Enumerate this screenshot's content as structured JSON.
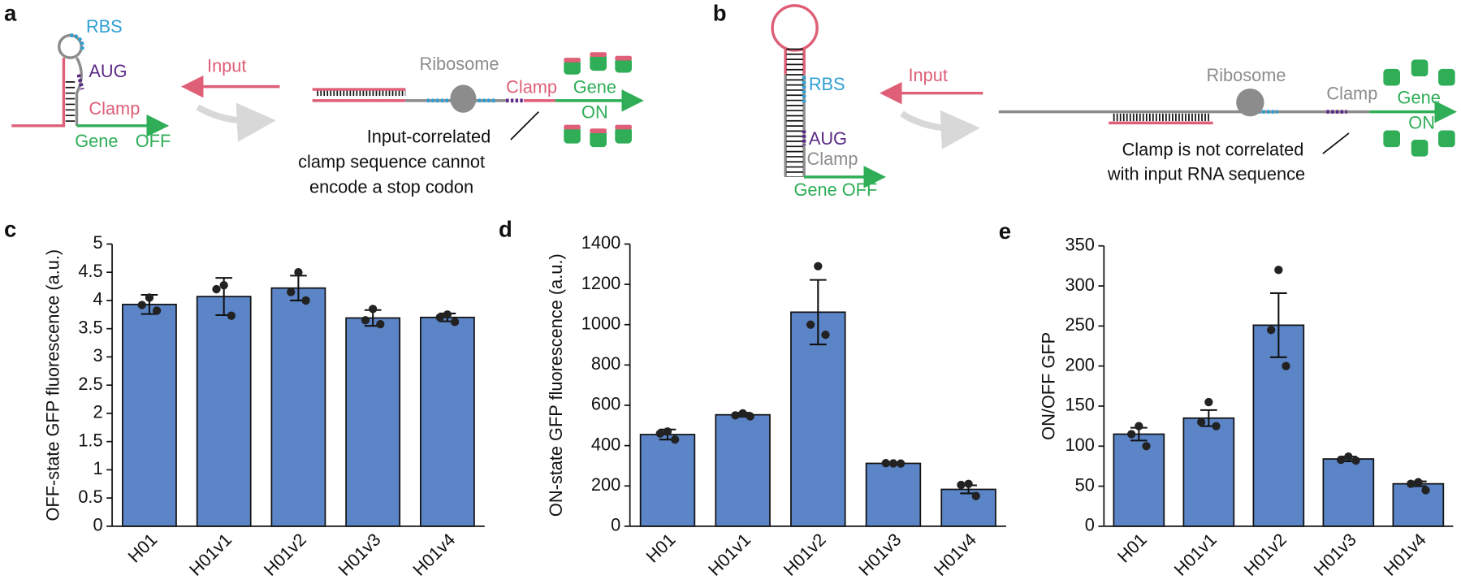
{
  "diagram_a": {
    "panel": "a",
    "hairpin": {
      "rbs": "RBS",
      "aug": "AUG",
      "clamp": "Clamp",
      "gene": "Gene",
      "state": "OFF"
    },
    "input": "Input",
    "product": {
      "ribosome": "Ribosome",
      "clamp": "Clamp",
      "gene": "Gene",
      "state": "ON"
    },
    "note": [
      "Input-correlated",
      "clamp sequence cannot",
      "encode a stop codon"
    ]
  },
  "diagram_b": {
    "panel": "b",
    "hairpin": {
      "rbs": "RBS",
      "aug": "AUG",
      "clamp": "Clamp",
      "gene": "Gene OFF"
    },
    "input": "Input",
    "product": {
      "ribosome": "Ribosome",
      "clamp": "Clamp",
      "gene": "Gene",
      "state": "ON"
    },
    "note": [
      "Clamp is not correlated",
      "with input RNA sequence"
    ]
  },
  "chart_data": [
    {
      "type": "bar",
      "panel": "c",
      "y_label": "OFF-state GFP fluorescence (a.u.)",
      "categories": [
        "H01",
        "H01v1",
        "H01v2",
        "H01v3",
        "H01v4"
      ],
      "values": [
        3.93,
        4.07,
        4.22,
        3.69,
        3.7
      ],
      "errors": [
        0.17,
        0.33,
        0.22,
        0.14,
        0.07
      ],
      "points": [
        [
          4.05,
          3.92,
          3.82
        ],
        [
          4.27,
          4.2,
          3.73
        ],
        [
          4.5,
          4.15,
          4.0
        ],
        [
          3.85,
          3.65,
          3.58
        ],
        [
          3.75,
          3.7,
          3.62
        ]
      ],
      "color": "#5b85c7",
      "ylim": [
        0,
        5
      ],
      "yticks": [
        0,
        0.5,
        1,
        1.5,
        2,
        2.5,
        3,
        3.5,
        4,
        4.5,
        5
      ]
    },
    {
      "type": "bar",
      "panel": "d",
      "y_label": "ON-state GFP fluorescence (a.u.)",
      "categories": [
        "H01",
        "H01v1",
        "H01v2",
        "H01v3",
        "H01v4"
      ],
      "values": [
        455,
        553,
        1062,
        312,
        183
      ],
      "errors": [
        25,
        10,
        160,
        3,
        20
      ],
      "points": [
        [
          470,
          460,
          430
        ],
        [
          560,
          550,
          545
        ],
        [
          1290,
          1000,
          950
        ],
        [
          312,
          313,
          311
        ],
        [
          210,
          205,
          150
        ]
      ],
      "color": "#5b85c7",
      "ylim": [
        0,
        1400
      ],
      "yticks": [
        0,
        200,
        400,
        600,
        800,
        1000,
        1200,
        1400
      ]
    },
    {
      "type": "bar",
      "panel": "e",
      "y_label": "ON/OFF GFP",
      "categories": [
        "H01",
        "H01v1",
        "H01v2",
        "H01v3",
        "H01v4"
      ],
      "values": [
        115,
        135,
        251,
        84,
        53
      ],
      "errors": [
        8,
        10,
        40,
        3,
        3
      ],
      "points": [
        [
          125,
          115,
          100
        ],
        [
          155,
          130,
          125
        ],
        [
          320,
          245,
          200
        ],
        [
          87,
          83,
          82
        ],
        [
          55,
          53,
          45
        ]
      ],
      "color": "#5b85c7",
      "ylim": [
        0,
        350
      ],
      "yticks": [
        0,
        50,
        100,
        150,
        200,
        250,
        300,
        350
      ]
    }
  ]
}
